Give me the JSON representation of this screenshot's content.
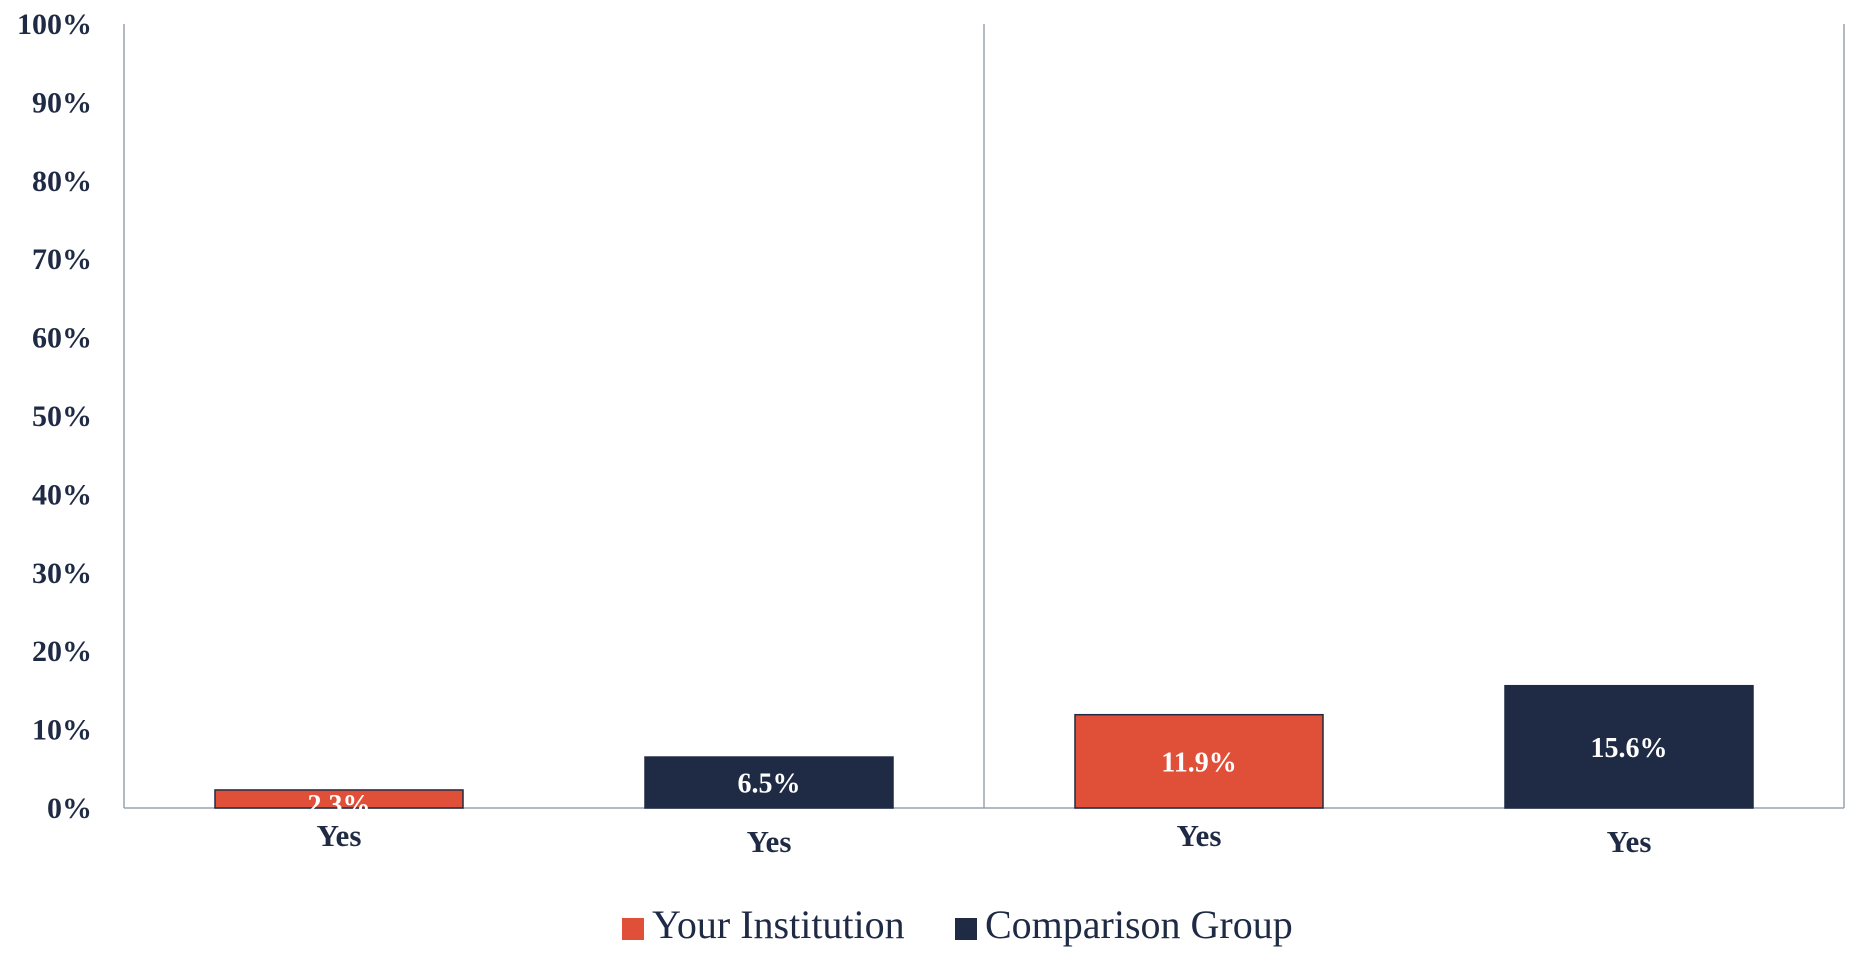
{
  "chart_data": {
    "type": "bar",
    "ylim": [
      0,
      100
    ],
    "y_ticks": [
      "0%",
      "10%",
      "20%",
      "30%",
      "40%",
      "50%",
      "60%",
      "70%",
      "80%",
      "90%",
      "100%"
    ],
    "groups": [
      {
        "bars": [
          {
            "series": "Your Institution",
            "category": "Yes",
            "value": 2.3,
            "label": "2.3%"
          },
          {
            "series": "Comparison Group",
            "category": "Yes",
            "value": 6.5,
            "label": "6.5%"
          }
        ]
      },
      {
        "bars": [
          {
            "series": "Your Institution",
            "category": "Yes",
            "value": 11.9,
            "label": "11.9%"
          },
          {
            "series": "Comparison Group",
            "category": "Yes",
            "value": 15.6,
            "label": "15.6%"
          }
        ]
      }
    ],
    "series": [
      {
        "name": "Your Institution",
        "color": "#e05038"
      },
      {
        "name": "Comparison Group",
        "color": "#1f2a44"
      }
    ],
    "grid": false,
    "legend": "bottom-center"
  }
}
